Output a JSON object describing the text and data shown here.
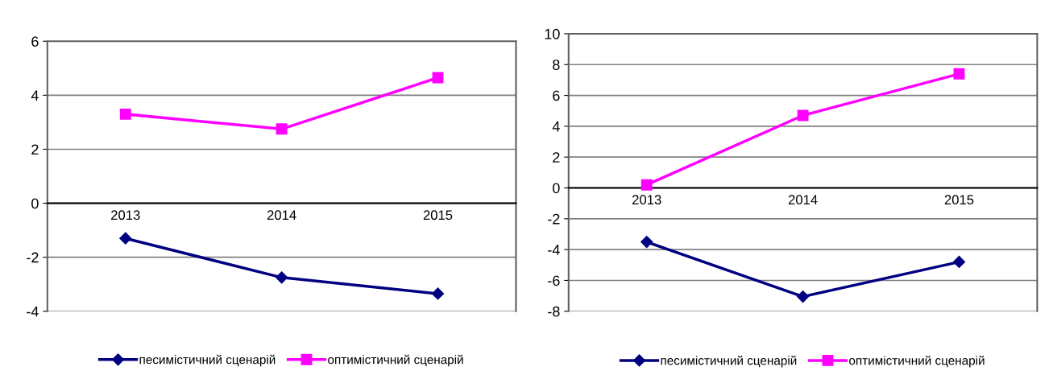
{
  "chart_data": [
    {
      "type": "line",
      "categories": [
        "2013",
        "2014",
        "2015"
      ],
      "ylim": [
        -4,
        6
      ],
      "yticks": [
        -4,
        -2,
        0,
        2,
        4,
        6
      ],
      "grid": "y",
      "legend": "bottom",
      "line_style": "solid",
      "series": [
        {
          "name": "песимістичний сценарій",
          "color": "#000080",
          "marker": "diamond",
          "values": [
            -1.3,
            -2.75,
            -3.35
          ]
        },
        {
          "name": "оптимістичний сценарій",
          "color": "#ff00ff",
          "marker": "square",
          "values": [
            3.3,
            2.75,
            4.65
          ]
        }
      ]
    },
    {
      "type": "line",
      "categories": [
        "2013",
        "2014",
        "2015"
      ],
      "ylim": [
        -8,
        10
      ],
      "yticks": [
        -8,
        -6,
        -4,
        -2,
        0,
        2,
        4,
        6,
        8,
        10
      ],
      "grid": "y",
      "legend": "bottom",
      "line_style": "solid",
      "series": [
        {
          "name": "песимістичний сценарій",
          "color": "#000080",
          "marker": "diamond",
          "values": [
            -3.5,
            -7.05,
            -4.8
          ]
        },
        {
          "name": "оптимістичний сценарій",
          "color": "#ff00ff",
          "marker": "square",
          "values": [
            0.2,
            4.7,
            7.4
          ]
        }
      ]
    }
  ]
}
